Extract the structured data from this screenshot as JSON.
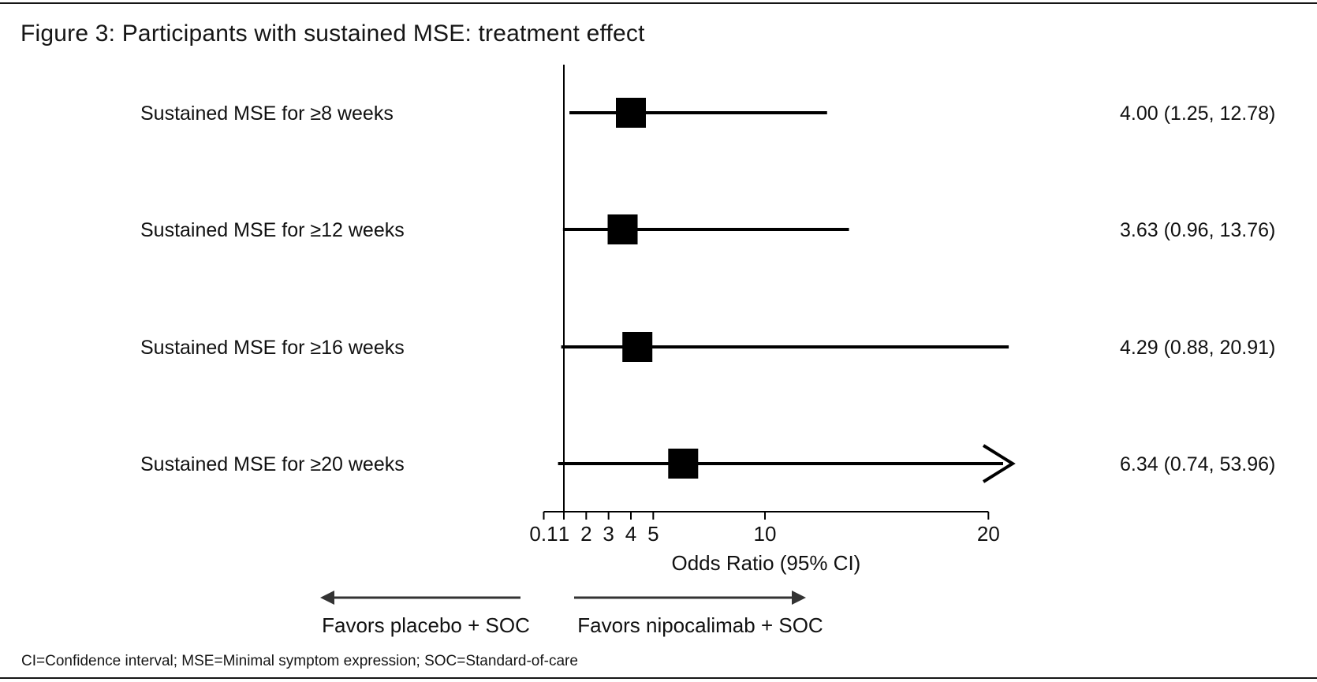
{
  "title": "Figure 3: Participants with sustained MSE: treatment effect",
  "footnote": "CI=Confidence interval; MSE=Minimal symptom expression; SOC=Standard-of-care",
  "colors": {
    "marker": "#000000",
    "line": "#000000",
    "text": "#111111",
    "direction_arrow": "#333333"
  },
  "chart_data": {
    "type": "scatter",
    "subtype": "forest-plot",
    "title": "Figure 3: Participants with sustained MSE: treatment effect",
    "xlabel": "Odds Ratio (95% CI)",
    "x_scale": "linear",
    "x_range": [
      0.1,
      20
    ],
    "x_ticks": [
      "0.1",
      "1",
      "2",
      "3",
      "4",
      "5",
      "10",
      "20"
    ],
    "reference_line_x": 1,
    "marker_shape": "square",
    "rows": [
      {
        "label": "Sustained MSE for ≥8 weeks",
        "or": 4.0,
        "ci_lower": 1.25,
        "ci_upper": 12.78,
        "value_text": "4.00 (1.25, 12.78)",
        "upper_off_scale": false
      },
      {
        "label": "Sustained MSE for ≥12 weeks",
        "or": 3.63,
        "ci_lower": 0.96,
        "ci_upper": 13.76,
        "value_text": "3.63 (0.96, 13.76)",
        "upper_off_scale": false
      },
      {
        "label": "Sustained MSE for ≥16 weeks",
        "or": 4.29,
        "ci_lower": 0.88,
        "ci_upper": 20.91,
        "value_text": "4.29 (0.88, 20.91)",
        "upper_off_scale": false
      },
      {
        "label": "Sustained MSE for ≥20 weeks",
        "or": 6.34,
        "ci_lower": 0.74,
        "ci_upper": 53.96,
        "value_text": "6.34 (0.74, 53.96)",
        "upper_off_scale": true
      }
    ],
    "direction_labels": {
      "left": "Favors placebo + SOC",
      "right": "Favors nipocalimab + SOC"
    }
  }
}
